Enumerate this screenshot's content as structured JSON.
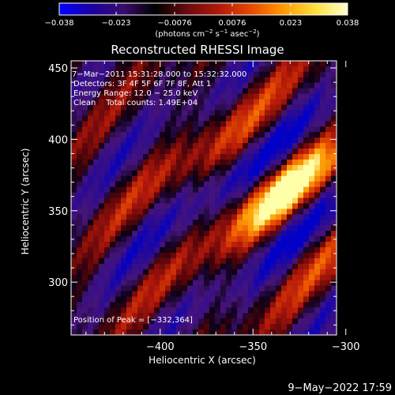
{
  "colorbar": {
    "tick_labels": [
      "−0.038",
      "−0.023",
      "−0.0076",
      "0.0076",
      "0.023",
      "0.038"
    ],
    "tick_values": [
      -0.038,
      -0.023,
      -0.0076,
      0.0076,
      0.023,
      0.038
    ],
    "unit_prefix": "(photons cm",
    "unit_exp1": "−2",
    "unit_mid": " s",
    "unit_exp2": "−1",
    "unit_mid2": " asec",
    "unit_exp3": "−2",
    "unit_suffix": ")",
    "colors": [
      "#0000ff",
      "#1a00a0",
      "#3a0c6e",
      "#000000",
      "#6a0a10",
      "#b01a08",
      "#e84a00",
      "#ff9a00",
      "#ffe040",
      "#ffffcc"
    ]
  },
  "chart_data": {
    "type": "heatmap",
    "title": "Reconstructed RHESSI Image",
    "xlabel": "Heliocentric X (arcsec)",
    "ylabel": "Heliocentric Y (arcsec)",
    "xlim": [
      -448,
      -305
    ],
    "ylim": [
      263,
      455
    ],
    "x_ticks": [
      -400,
      -350,
      -300
    ],
    "x_tick_labels": [
      "−400",
      "−350",
      "−300"
    ],
    "y_ticks": [
      300,
      350,
      400,
      450
    ],
    "y_tick_labels": [
      "300",
      "350",
      "400",
      "450"
    ],
    "peak": [
      -332,
      364
    ],
    "annotations": {
      "time": "7−Mar−2011 15:31:28.000 to 15:32:32.000",
      "detectors": "Detectors: 3F 4F 5F 6F 7F 8F, Att 1",
      "energy": "Energy Range: 12.0 − 25.0 keV",
      "clean": "Clean    Total counts: 1.49E+04",
      "peak_text": "Position of Peak = [−332,364]"
    }
  },
  "footer": {
    "date": "9−May−2022 17:59"
  }
}
